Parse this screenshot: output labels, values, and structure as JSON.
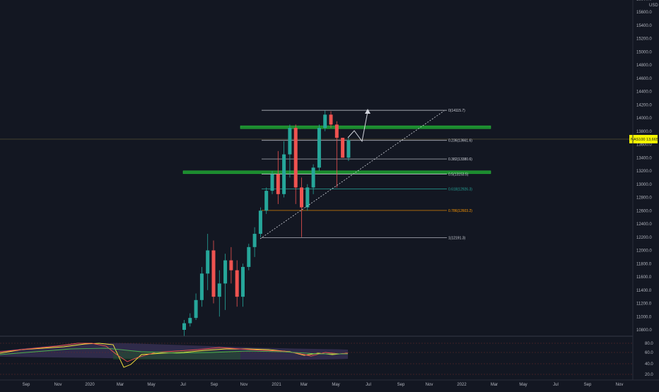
{
  "price_axis": {
    "currency": "USD",
    "ticks": [
      "15800.0",
      "15600.0",
      "15400.0",
      "15200.0",
      "15000.0",
      "14800.0",
      "14600.0",
      "14400.0",
      "14200.0",
      "14000.0",
      "13800.0",
      "13600.0",
      "13400.0",
      "13200.0",
      "13000.0",
      "12800.0",
      "12600.0",
      "12400.0",
      "12200.0",
      "12000.0",
      "11800.0",
      "11600.0",
      "11400.0",
      "11200.0",
      "11000.0",
      "10800.0"
    ],
    "current_label": "NAS100 13,665"
  },
  "time_axis": {
    "ticks": [
      "Sep",
      "Nov",
      "2020",
      "Mar",
      "May",
      "Jul",
      "Sep",
      "Nov",
      "2021",
      "Mar",
      "May",
      "Jul",
      "Sep",
      "Nov",
      "2022",
      "Mar",
      "May",
      "Jul",
      "Sep",
      "Nov"
    ]
  },
  "fib_levels": [
    {
      "ratio": 0,
      "price": 14115.7,
      "label": "0(14115.7)",
      "color": "#d1d4dc"
    },
    {
      "ratio": 0.236,
      "price": 13661.6,
      "label": "0.236(13661.6)",
      "color": "#d1d4dc"
    },
    {
      "ratio": 0.382,
      "price": 13380.6,
      "label": "0.382(13380.6)",
      "color": "#d1d4dc"
    },
    {
      "ratio": 0.5,
      "price": 13153.5,
      "label": "0.5(13153.5)",
      "color": "#d1d4dc"
    },
    {
      "ratio": 0.618,
      "price": 12926.3,
      "label": "0.618(12926.3)",
      "color": "#26a69a"
    },
    {
      "ratio": 0.786,
      "price": 12603.2,
      "label": "0.786(12603.2)",
      "color": "#ff9800"
    },
    {
      "ratio": 1,
      "price": 12191.3,
      "label": "1(12191.3)",
      "color": "#d1d4dc"
    }
  ],
  "zones": [
    {
      "name": "upper-resistance",
      "price": 13860,
      "color": "#1b8a2e"
    },
    {
      "name": "lower-support",
      "price": 13180,
      "color": "#1b8a2e"
    }
  ],
  "current_price": 13665,
  "colors": {
    "up": "#26a69a",
    "down": "#ef5350",
    "bg": "#131722",
    "label_bg": "#f5f500"
  },
  "oscillator": {
    "levels": [
      "80.0",
      "60.0",
      "40.0",
      "20.0"
    ]
  },
  "chart_data": {
    "type": "candlestick",
    "symbol": "NAS100",
    "y_unit": "USD",
    "ylim": [
      10700,
      15900
    ],
    "candles": [
      {
        "o": 10800,
        "h": 10950,
        "l": 10700,
        "c": 10900
      },
      {
        "o": 10900,
        "h": 11050,
        "l": 10850,
        "c": 10980
      },
      {
        "o": 10980,
        "h": 11350,
        "l": 10950,
        "c": 11250
      },
      {
        "o": 11250,
        "h": 11750,
        "l": 11150,
        "c": 11650
      },
      {
        "o": 11650,
        "h": 12250,
        "l": 11400,
        "c": 12000
      },
      {
        "o": 12000,
        "h": 12150,
        "l": 11200,
        "c": 11300
      },
      {
        "o": 11300,
        "h": 11700,
        "l": 11000,
        "c": 11500
      },
      {
        "o": 11500,
        "h": 11950,
        "l": 11100,
        "c": 11850
      },
      {
        "o": 11850,
        "h": 12050,
        "l": 11500,
        "c": 11700
      },
      {
        "o": 11700,
        "h": 11850,
        "l": 11150,
        "c": 11300
      },
      {
        "o": 11300,
        "h": 11800,
        "l": 11150,
        "c": 11750
      },
      {
        "o": 11750,
        "h": 12100,
        "l": 11700,
        "c": 12050
      },
      {
        "o": 12050,
        "h": 12350,
        "l": 11900,
        "c": 12250
      },
      {
        "o": 12250,
        "h": 12650,
        "l": 12200,
        "c": 12600
      },
      {
        "o": 12600,
        "h": 12950,
        "l": 12550,
        "c": 12900
      },
      {
        "o": 12900,
        "h": 13200,
        "l": 12850,
        "c": 13150
      },
      {
        "o": 13150,
        "h": 13500,
        "l": 12700,
        "c": 12850
      },
      {
        "o": 12850,
        "h": 13650,
        "l": 12800,
        "c": 13450
      },
      {
        "o": 13450,
        "h": 13900,
        "l": 13100,
        "c": 13850
      },
      {
        "o": 13850,
        "h": 13900,
        "l": 12700,
        "c": 12950
      },
      {
        "o": 12950,
        "h": 13100,
        "l": 12200,
        "c": 12650
      },
      {
        "o": 12650,
        "h": 13000,
        "l": 12600,
        "c": 12950
      },
      {
        "o": 12950,
        "h": 13300,
        "l": 12850,
        "c": 13250
      },
      {
        "o": 13250,
        "h": 13900,
        "l": 13200,
        "c": 13850
      },
      {
        "o": 13850,
        "h": 14115,
        "l": 13800,
        "c": 14050
      },
      {
        "o": 14050,
        "h": 14100,
        "l": 13850,
        "c": 13900
      },
      {
        "o": 13900,
        "h": 13950,
        "l": 12950,
        "c": 13700
      },
      {
        "o": 13700,
        "h": 13700,
        "l": 13400,
        "c": 13400
      },
      {
        "o": 13400,
        "h": 13700,
        "l": 13350,
        "c": 13665
      }
    ]
  }
}
